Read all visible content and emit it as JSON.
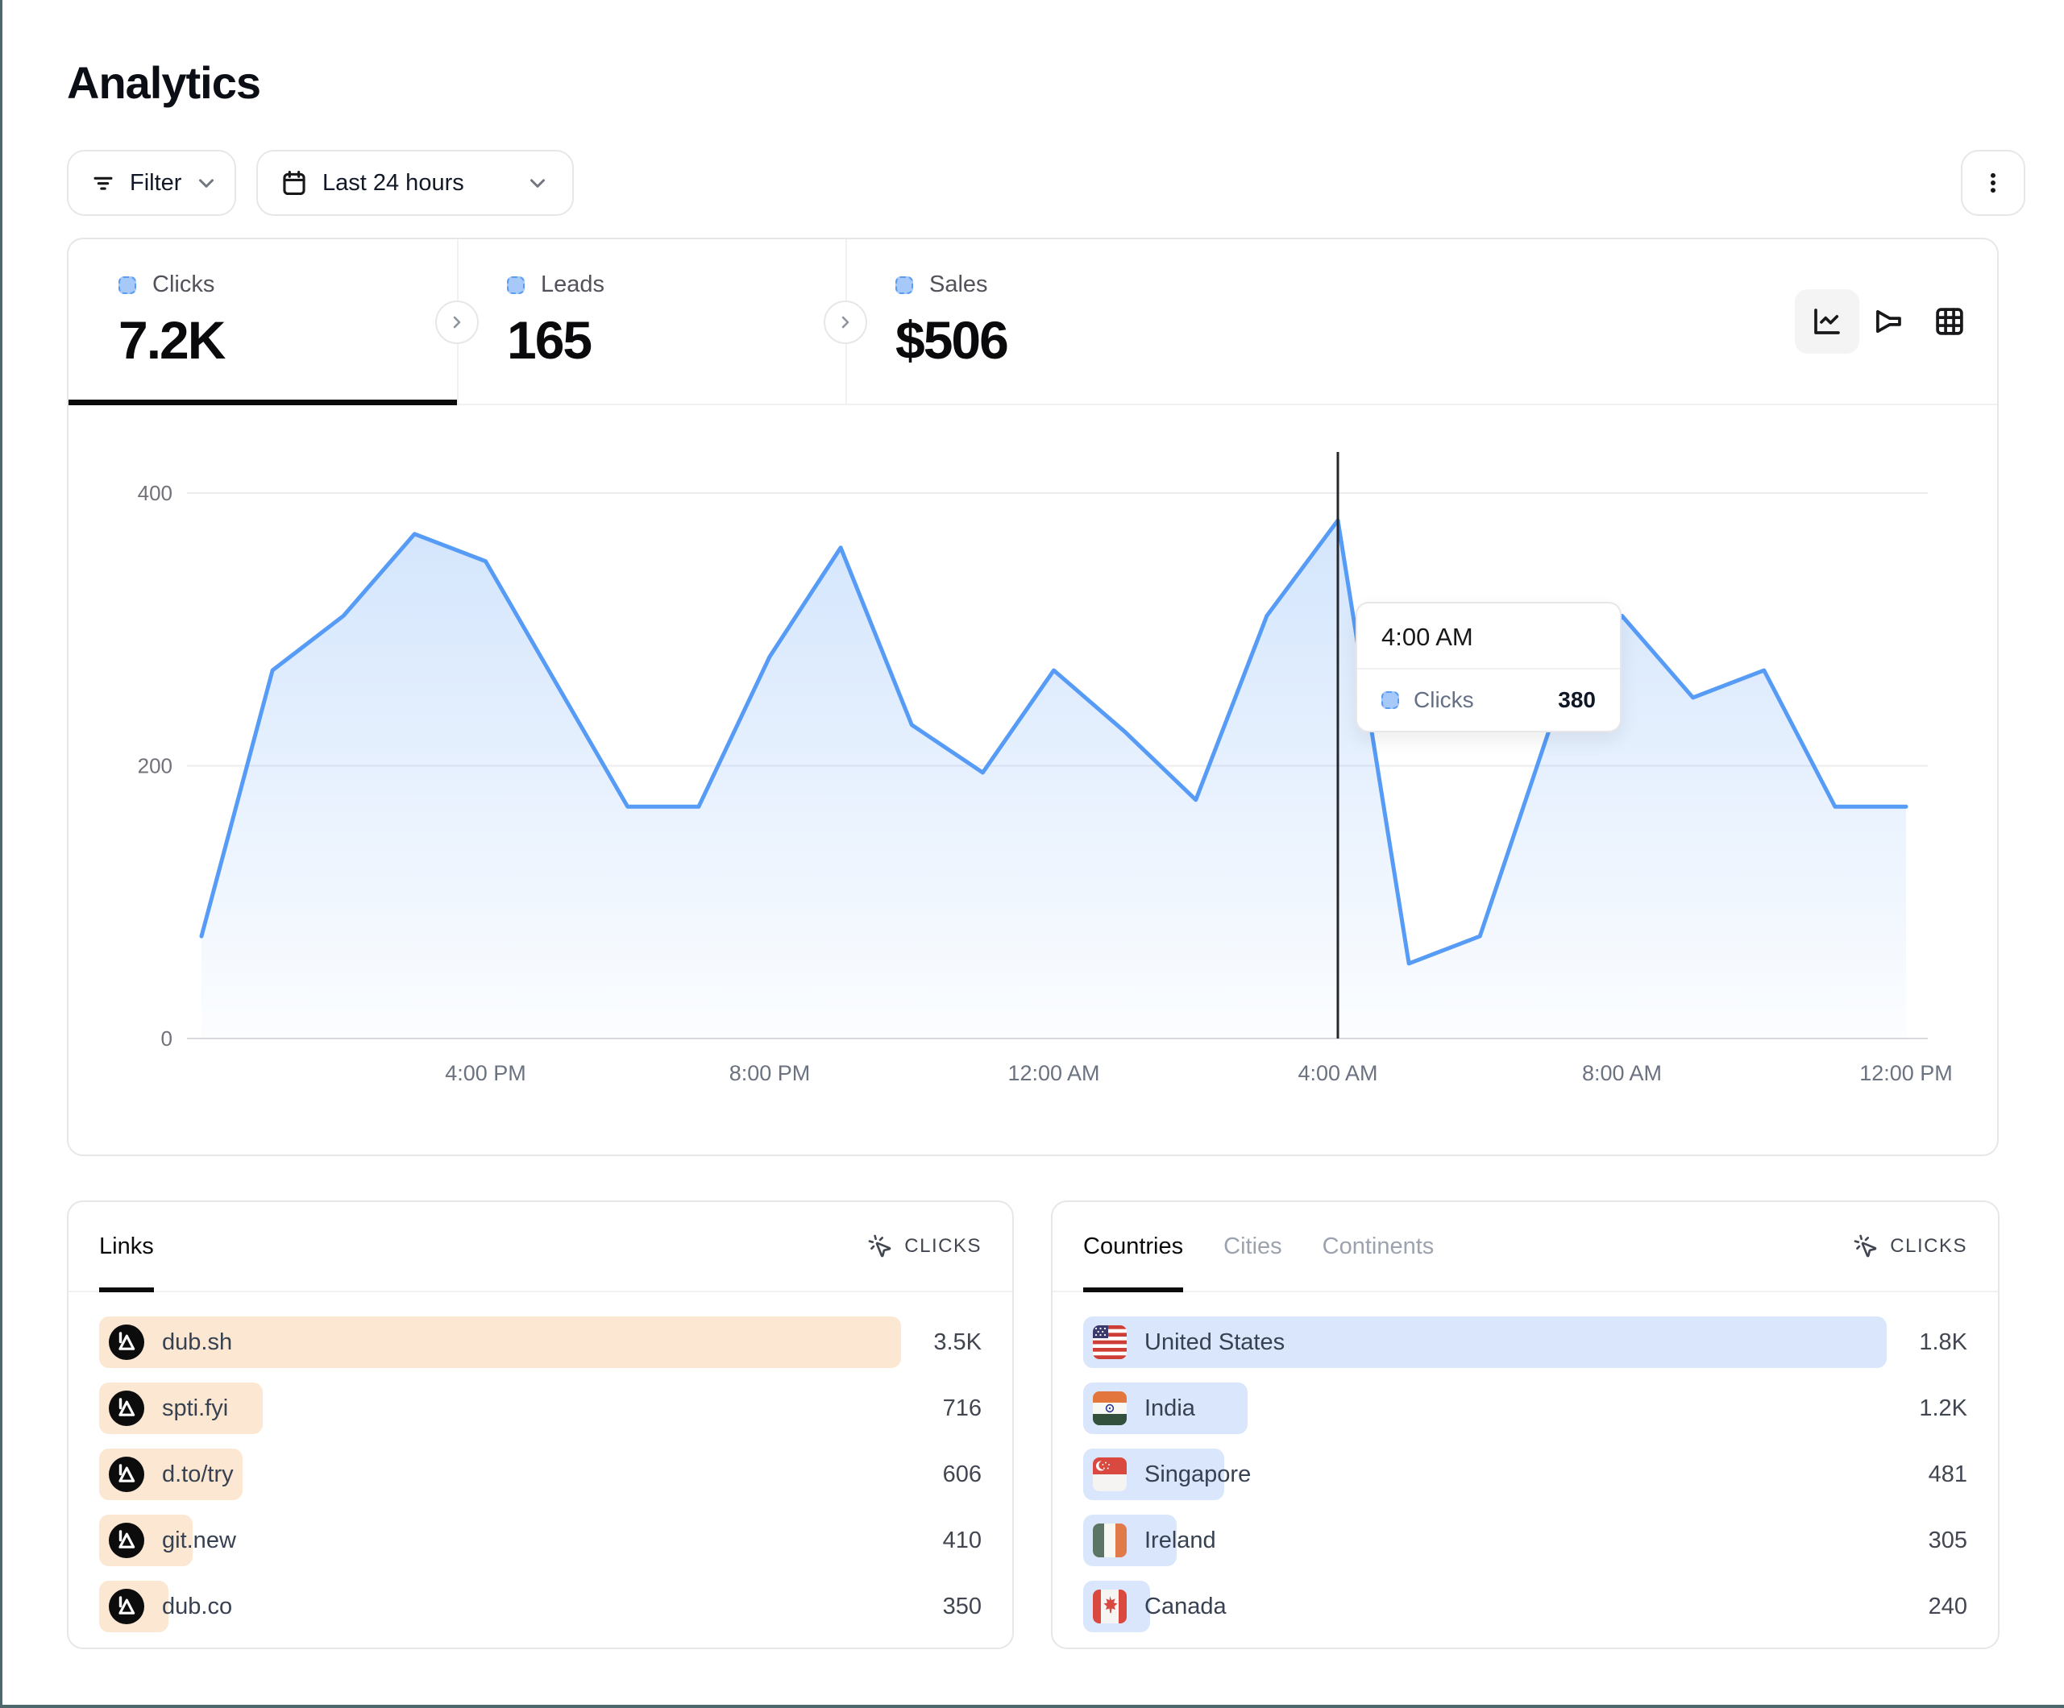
{
  "page": {
    "title": "Analytics"
  },
  "toolbar": {
    "filter_label": "Filter",
    "date_range_label": "Last 24 hours",
    "icons": {
      "filter": "filter-lines-icon",
      "calendar": "calendar-icon",
      "filter_chevron": "chevron-down-icon",
      "date_chevron": "chevron-down-icon",
      "kebab": "kebab-menu-icon"
    }
  },
  "stats": {
    "tabs": [
      {
        "label": "Clicks",
        "value": "7.2K"
      },
      {
        "label": "Leads",
        "value": "165"
      },
      {
        "label": "Sales",
        "value": "$506"
      }
    ],
    "chart_type_icons": [
      {
        "name": "line-chart-icon",
        "selected": true
      },
      {
        "name": "funnel-icon",
        "selected": false
      },
      {
        "name": "grid-icon",
        "selected": false
      }
    ]
  },
  "chart_data": {
    "type": "area",
    "title": "",
    "xlabel": "",
    "ylabel": "",
    "x": [
      "12:00 PM",
      "1:00 PM",
      "2:00 PM",
      "3:00 PM",
      "4:00 PM",
      "5:00 PM",
      "6:00 PM",
      "7:00 PM",
      "8:00 PM",
      "9:00 PM",
      "10:00 PM",
      "11:00 PM",
      "12:00 AM",
      "1:00 AM",
      "2:00 AM",
      "3:00 AM",
      "4:00 AM",
      "5:00 AM",
      "6:00 AM",
      "7:00 AM",
      "8:00 AM",
      "9:00 AM",
      "10:00 AM",
      "11:00 AM",
      "12:00 PM"
    ],
    "series": [
      {
        "name": "Clicks",
        "color": "#569bf5",
        "values": [
          75,
          270,
          310,
          370,
          350,
          260,
          170,
          170,
          280,
          360,
          230,
          195,
          270,
          225,
          175,
          310,
          380,
          55,
          75,
          230,
          310,
          250,
          270,
          170,
          170
        ]
      }
    ],
    "ylim": [
      0,
      400
    ],
    "yticks": [
      0,
      200,
      400
    ],
    "xticks": [
      {
        "label": "4:00 PM",
        "index": 4
      },
      {
        "label": "8:00 PM",
        "index": 8
      },
      {
        "label": "12:00 AM",
        "index": 12
      },
      {
        "label": "4:00 AM",
        "index": 16
      },
      {
        "label": "8:00 AM",
        "index": 20
      },
      {
        "label": "12:00 PM",
        "index": 24
      }
    ],
    "grid": true,
    "legend_position": "none",
    "crosshair_index": 16,
    "highlighted_point": {
      "x_label": "4:00 AM",
      "series": "Clicks",
      "value": 380
    }
  },
  "tooltip": {
    "time": "4:00 AM",
    "series": "Clicks",
    "value": "380"
  },
  "links_panel": {
    "tabs": [
      "Links"
    ],
    "active_tab": "Links",
    "metric_label": "CLICKS",
    "metric_icon": "cursor-click-icon",
    "bar_color": "#fce8d2",
    "rows": [
      {
        "label": "dub.sh",
        "value": "3.5K",
        "bar_pct": 100,
        "icon": "dub-logo-icon"
      },
      {
        "label": "spti.fyi",
        "value": "716",
        "bar_pct": 20.4,
        "icon": "dub-logo-icon"
      },
      {
        "label": "d.to/try",
        "value": "606",
        "bar_pct": 17.9,
        "icon": "dub-logo-icon"
      },
      {
        "label": "git.new",
        "value": "410",
        "bar_pct": 11.7,
        "icon": "dub-logo-icon"
      },
      {
        "label": "dub.co",
        "value": "350",
        "bar_pct": 8.6,
        "icon": "dub-logo-icon"
      }
    ]
  },
  "countries_panel": {
    "tabs": [
      "Countries",
      "Cities",
      "Continents"
    ],
    "active_tab": "Countries",
    "metric_label": "CLICKS",
    "metric_icon": "cursor-click-icon",
    "bar_color": "#d9e6fb",
    "rows": [
      {
        "label": "United States",
        "value": "1.8K",
        "bar_pct": 100,
        "icon": "us-flag-icon"
      },
      {
        "label": "India",
        "value": "1.2K",
        "bar_pct": 20.5,
        "icon": "india-flag-icon"
      },
      {
        "label": "Singapore",
        "value": "481",
        "bar_pct": 17.6,
        "icon": "singapore-flag-icon"
      },
      {
        "label": "Ireland",
        "value": "305",
        "bar_pct": 11.6,
        "icon": "ireland-flag-icon"
      },
      {
        "label": "Canada",
        "value": "240",
        "bar_pct": 8.3,
        "icon": "canada-flag-icon"
      }
    ]
  },
  "colors": {
    "accent_blue": "#569bf5",
    "legend_chip_fill": "#a6c9fa",
    "links_bar": "#fce8d2",
    "countries_bar": "#d9e6fb",
    "card_border": "#e7e7e9",
    "window_edge": "#4d676c",
    "active_tab_underline": "#0b0b0c",
    "muted_text": "#6b7280"
  }
}
